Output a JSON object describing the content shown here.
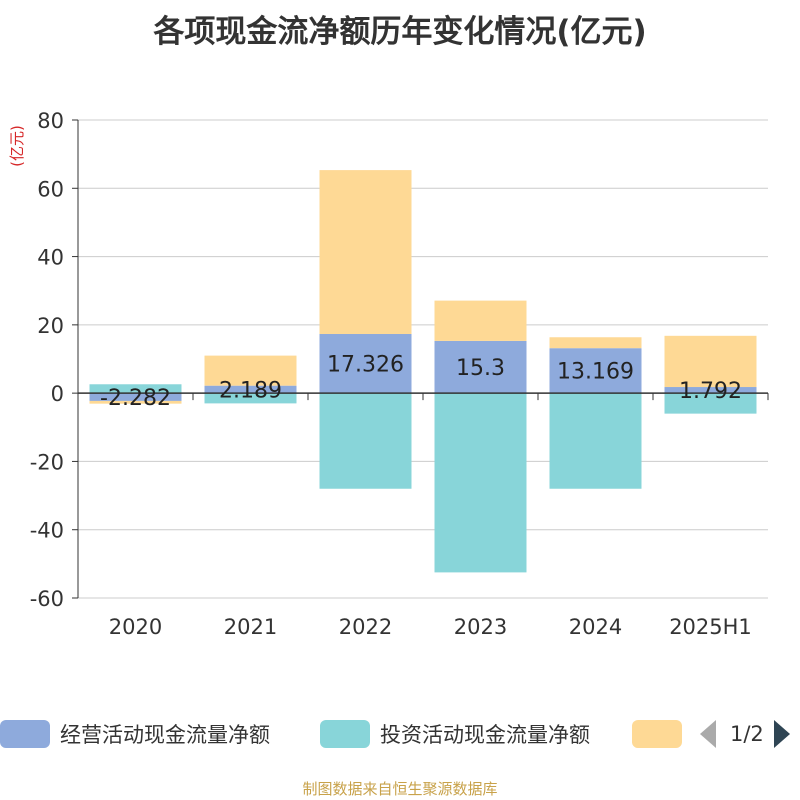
{
  "title": "各项现金流净额历年变化情况(亿元)",
  "y_unit": "(亿元)",
  "source": "制图数据来自恒生聚源数据库",
  "legend": {
    "items": [
      {
        "label": "经营活动现金流量净额",
        "color": "#8eaadc"
      },
      {
        "label": "投资活动现金流量净额",
        "color": "#88d5d9"
      },
      {
        "label": "",
        "color": "#fed995"
      }
    ],
    "pager": "1/2"
  },
  "chart_data": {
    "type": "bar",
    "stacked": true,
    "categories": [
      "2020",
      "2021",
      "2022",
      "2023",
      "2024",
      "2025H1"
    ],
    "series": [
      {
        "name": "经营活动现金流量净额",
        "color": "#8eaadc",
        "values": [
          -2.282,
          2.189,
          17.326,
          15.3,
          13.169,
          1.792
        ],
        "labels": [
          "-2.282",
          "2.189",
          "17.326",
          "15.3",
          "13.169",
          "1.792"
        ]
      },
      {
        "name": "投资活动现金流量净额",
        "color": "#88d5d9",
        "values": [
          2.6,
          -3.0,
          -28.0,
          -52.5,
          -28.0,
          -6.0
        ]
      },
      {
        "name": "",
        "color": "#fed995",
        "values": [
          -0.8,
          8.8,
          48.0,
          11.8,
          3.2,
          15.0
        ]
      }
    ],
    "ylim": [
      -60,
      80
    ],
    "yticks": [
      -60,
      -40,
      -20,
      0,
      20,
      40,
      60,
      80
    ],
    "grid": true,
    "legend_position": "bottom"
  }
}
